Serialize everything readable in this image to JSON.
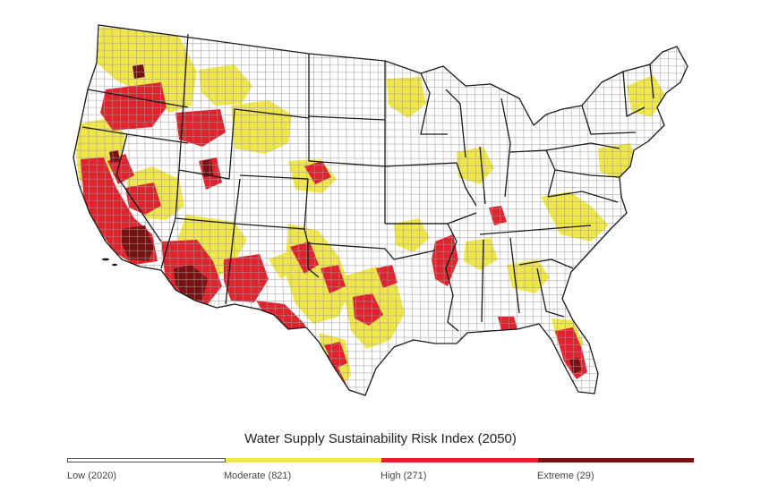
{
  "title": "Water Supply Sustainability Risk Index (2050)",
  "colors": {
    "low": "#ffffff",
    "moderate": "#f0e84a",
    "high": "#e0232e",
    "extreme": "#7a1214",
    "county_border": "#9a9a9a",
    "state_border": "#1a1a1a"
  },
  "legend": [
    {
      "label": "Low (2020)",
      "color": "#ffffff"
    },
    {
      "label": "Moderate (821)",
      "color": "#f0e84a"
    },
    {
      "label": "High (271)",
      "color": "#e0232e"
    },
    {
      "label": "Extreme (29)",
      "color": "#7a1214"
    }
  ]
}
